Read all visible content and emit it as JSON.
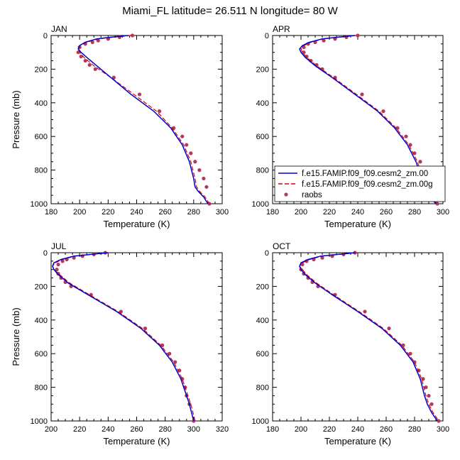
{
  "figure": {
    "title": "Miami_FL  latitude= 26.511 N longitude= 80 W"
  },
  "legend": {
    "entries": [
      {
        "label": "f.e15.FAMIP.f09_f09.cesm2_zm.00",
        "color": "#0000cc",
        "style": "solid"
      },
      {
        "label": "f.e15.FAMIP.f09_f09.cesm2_zm.00g",
        "color": "#dd0000",
        "style": "dashed"
      },
      {
        "label": "raobs",
        "color": "#b03a5a",
        "style": "dot"
      }
    ]
  },
  "chart_data": [
    {
      "type": "line",
      "title": "JAN",
      "xlabel": "Temperature (K)",
      "ylabel": "Pressure (mb)",
      "xlim": [
        180,
        300
      ],
      "ylim": [
        1000,
        0
      ],
      "xticks": [
        180,
        200,
        220,
        240,
        260,
        280,
        300
      ],
      "yticks": [
        0,
        200,
        400,
        600,
        800,
        1000
      ],
      "series": [
        {
          "name": "f.e15.FAMIP.f09_f09.cesm2_zm.00",
          "color": "#0000cc",
          "style": "solid",
          "x": [
            234,
            222,
            212,
            204,
            200,
            199,
            201,
            205,
            212,
            222,
            236,
            252,
            264,
            272,
            277,
            280,
            281,
            283,
            287,
            290
          ],
          "y": [
            0,
            10,
            20,
            40,
            60,
            80,
            100,
            130,
            180,
            250,
            350,
            450,
            550,
            650,
            750,
            850,
            900,
            925,
            960,
            1000
          ]
        },
        {
          "name": "f.e15.FAMIP.f09_f09.cesm2_zm.00g",
          "color": "#dd0000",
          "style": "dashed",
          "x": [
            236,
            224,
            213,
            205,
            200,
            199,
            200,
            203,
            210,
            222,
            238,
            254,
            265,
            273,
            278,
            281,
            282,
            284,
            288,
            291
          ],
          "y": [
            0,
            10,
            20,
            40,
            60,
            80,
            100,
            130,
            180,
            250,
            350,
            450,
            550,
            650,
            750,
            850,
            900,
            925,
            960,
            1000
          ]
        },
        {
          "name": "raobs",
          "color": "#b03a5a",
          "style": "dot",
          "x": [
            237,
            228,
            220,
            213,
            209,
            204,
            200,
            199,
            201,
            204,
            207,
            211,
            224,
            242,
            256,
            266,
            272,
            275,
            278,
            281,
            284,
            287,
            289,
            291
          ],
          "y": [
            0,
            10,
            20,
            30,
            40,
            50,
            70,
            100,
            125,
            150,
            175,
            200,
            250,
            350,
            450,
            550,
            600,
            650,
            700,
            750,
            800,
            850,
            900,
            1000
          ]
        }
      ]
    },
    {
      "type": "line",
      "title": "APR",
      "xlabel": "Temperature (K)",
      "ylabel": "",
      "xlim": [
        180,
        300
      ],
      "ylim": [
        1000,
        0
      ],
      "xticks": [
        180,
        200,
        220,
        240,
        260,
        280,
        300
      ],
      "yticks": [
        0,
        200,
        400,
        600,
        800,
        1000
      ],
      "series": [
        {
          "name": "f.e15.FAMIP.f09_f09.cesm2_zm.00",
          "color": "#0000cc",
          "style": "solid",
          "x": [
            238,
            226,
            215,
            206,
            201,
            199,
            200,
            203,
            210,
            222,
            238,
            254,
            266,
            275,
            281,
            285,
            287,
            290,
            295
          ],
          "y": [
            0,
            10,
            20,
            40,
            60,
            80,
            100,
            130,
            180,
            250,
            350,
            450,
            550,
            650,
            750,
            850,
            900,
            950,
            1000
          ]
        },
        {
          "name": "f.e15.FAMIP.f09_f09.cesm2_zm.00g",
          "color": "#dd0000",
          "style": "dashed",
          "x": [
            239,
            227,
            216,
            207,
            202,
            200,
            201,
            204,
            211,
            223,
            239,
            255,
            267,
            276,
            282,
            286,
            288,
            291,
            296
          ],
          "y": [
            0,
            10,
            20,
            40,
            60,
            80,
            100,
            130,
            180,
            250,
            350,
            450,
            550,
            650,
            750,
            850,
            900,
            950,
            1000
          ]
        },
        {
          "name": "raobs",
          "color": "#b03a5a",
          "style": "dot",
          "x": [
            240,
            232,
            224,
            216,
            210,
            205,
            202,
            202,
            204,
            207,
            211,
            215,
            224,
            243,
            258,
            268,
            274,
            277,
            280,
            284,
            287,
            290,
            292,
            296
          ],
          "y": [
            0,
            10,
            20,
            30,
            40,
            50,
            70,
            100,
            125,
            150,
            175,
            200,
            250,
            350,
            450,
            550,
            600,
            650,
            700,
            750,
            800,
            850,
            900,
            1000
          ]
        }
      ]
    },
    {
      "type": "line",
      "title": "JUL",
      "xlabel": "Temperature (K)",
      "ylabel": "Pressure (mb)",
      "xlim": [
        200,
        320
      ],
      "ylim": [
        1000,
        0
      ],
      "xticks": [
        200,
        220,
        240,
        260,
        280,
        300,
        320
      ],
      "yticks": [
        0,
        200,
        400,
        600,
        800,
        1000
      ],
      "series": [
        {
          "name": "f.e15.FAMIP.f09_f09.cesm2_zm.00",
          "color": "#0000cc",
          "style": "solid",
          "x": [
            240,
            228,
            216,
            207,
            202,
            201,
            202,
            205,
            212,
            226,
            246,
            263,
            276,
            285,
            291,
            295,
            297,
            300
          ],
          "y": [
            0,
            10,
            20,
            40,
            60,
            80,
            100,
            130,
            180,
            250,
            350,
            450,
            550,
            650,
            750,
            850,
            900,
            1000
          ]
        },
        {
          "name": "f.e15.FAMIP.f09_f09.cesm2_zm.00g",
          "color": "#dd0000",
          "style": "dashed",
          "x": [
            241,
            229,
            217,
            208,
            203,
            201,
            202,
            206,
            213,
            227,
            247,
            264,
            277,
            286,
            292,
            296,
            298,
            301
          ],
          "y": [
            0,
            10,
            20,
            40,
            60,
            80,
            100,
            130,
            180,
            250,
            350,
            450,
            550,
            650,
            750,
            850,
            900,
            1000
          ]
        },
        {
          "name": "raobs",
          "color": "#b03a5a",
          "style": "dot",
          "x": [
            238,
            230,
            222,
            216,
            211,
            208,
            205,
            204,
            205,
            207,
            210,
            214,
            228,
            249,
            266,
            278,
            283,
            287,
            290,
            292,
            294,
            295,
            297,
            300
          ],
          "y": [
            0,
            10,
            20,
            30,
            40,
            50,
            70,
            100,
            125,
            150,
            175,
            200,
            250,
            350,
            450,
            550,
            600,
            650,
            700,
            750,
            800,
            850,
            900,
            1000
          ]
        }
      ]
    },
    {
      "type": "line",
      "title": "OCT",
      "xlabel": "Temperature (K)",
      "ylabel": "",
      "xlim": [
        180,
        300
      ],
      "ylim": [
        1000,
        0
      ],
      "xticks": [
        180,
        200,
        220,
        240,
        260,
        280,
        300
      ],
      "yticks": [
        0,
        200,
        400,
        600,
        800,
        1000
      ],
      "series": [
        {
          "name": "f.e15.FAMIP.f09_f09.cesm2_zm.00",
          "color": "#0000cc",
          "style": "solid",
          "x": [
            238,
            226,
            214,
            205,
            200,
            199,
            200,
            203,
            210,
            222,
            240,
            257,
            270,
            279,
            284,
            287,
            289,
            292,
            296
          ],
          "y": [
            0,
            10,
            20,
            40,
            60,
            80,
            100,
            130,
            180,
            250,
            350,
            450,
            550,
            650,
            750,
            850,
            900,
            950,
            1000
          ]
        },
        {
          "name": "f.e15.FAMIP.f09_f09.cesm2_zm.00g",
          "color": "#dd0000",
          "style": "dashed",
          "x": [
            239,
            227,
            215,
            206,
            201,
            199,
            201,
            204,
            211,
            223,
            241,
            258,
            271,
            280,
            285,
            288,
            290,
            293,
            297
          ],
          "y": [
            0,
            10,
            20,
            40,
            60,
            80,
            100,
            130,
            180,
            250,
            350,
            450,
            550,
            650,
            750,
            850,
            900,
            950,
            1000
          ]
        },
        {
          "name": "raobs",
          "color": "#b03a5a",
          "style": "dot",
          "x": [
            238,
            230,
            222,
            215,
            209,
            204,
            201,
            200,
            202,
            205,
            208,
            212,
            224,
            245,
            262,
            272,
            277,
            280,
            283,
            286,
            288,
            290,
            292,
            297
          ],
          "y": [
            0,
            10,
            20,
            30,
            40,
            50,
            70,
            100,
            125,
            150,
            175,
            200,
            250,
            350,
            450,
            550,
            600,
            650,
            700,
            750,
            800,
            850,
            900,
            1000
          ]
        }
      ]
    }
  ]
}
